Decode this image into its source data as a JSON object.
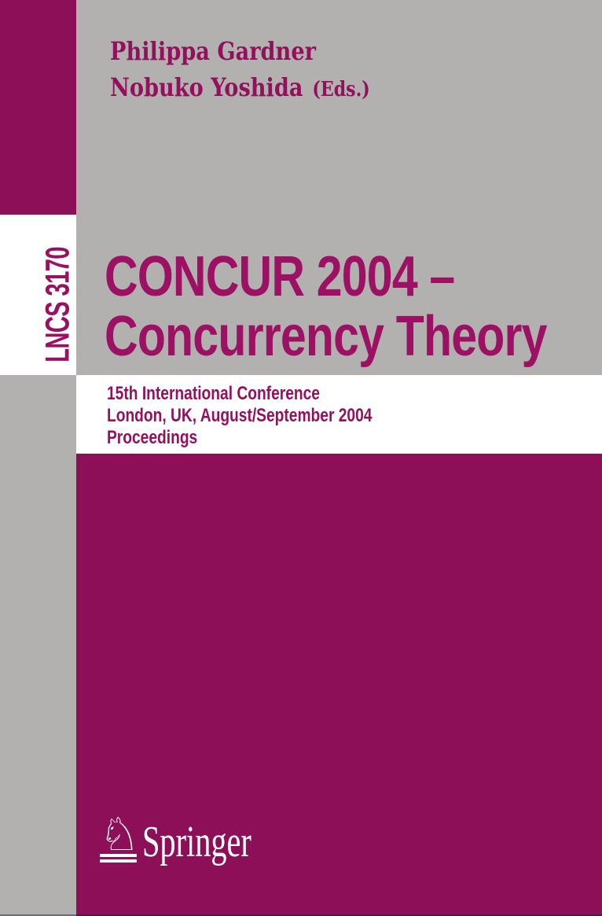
{
  "cover": {
    "editors": {
      "line1": "Philippa Gardner",
      "line2": "Nobuko Yoshida",
      "suffix": "(Eds.)"
    },
    "series": {
      "label": "LNCS 3170"
    },
    "title": {
      "line1": "CONCUR 2004 –",
      "line2": "Concurrency Theory"
    },
    "subtitle": {
      "line1": "15th International Conference",
      "line2": "London, UK, August/September 2004",
      "line3": "Proceedings"
    },
    "publisher": {
      "name": "Springer"
    },
    "icons": {
      "springer_horse": "♘"
    },
    "colors": {
      "magenta_block": "#8C0F57",
      "magenta_text": "#9C1163",
      "background_gray": "#B2B1AF",
      "band_white": "#FFFFFF"
    }
  }
}
